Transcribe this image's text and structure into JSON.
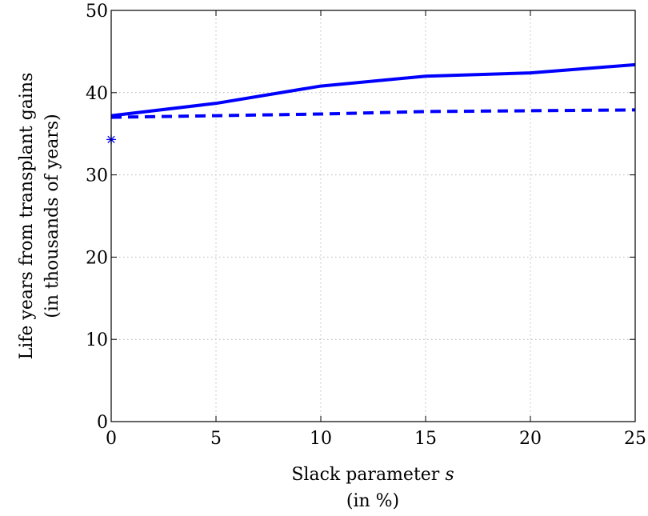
{
  "chart_data": {
    "type": "line",
    "xlabel_line1": "Slack parameter",
    "xlabel_symbol": "s",
    "xlabel_line2": "(in %)",
    "ylabel_line1": "Life years from transplant gains",
    "ylabel_line2": "(in thousands of years)",
    "xlim": [
      0,
      25
    ],
    "ylim": [
      0,
      50
    ],
    "xticks": [
      0,
      5,
      10,
      15,
      20,
      25
    ],
    "yticks": [
      0,
      10,
      20,
      30,
      40,
      50
    ],
    "grid": true,
    "series": [
      {
        "style": "solid",
        "color": "#0000ff",
        "x": [
          0,
          5,
          10,
          15,
          20,
          25
        ],
        "y": [
          37.2,
          38.7,
          40.8,
          42.0,
          42.4,
          43.4
        ]
      },
      {
        "style": "dashed",
        "color": "#0000ff",
        "x": [
          0,
          5,
          10,
          15,
          20,
          25
        ],
        "y": [
          37.0,
          37.2,
          37.4,
          37.7,
          37.8,
          37.9
        ]
      },
      {
        "style": "marker",
        "marker": "asterisk",
        "color": "#0000ff",
        "x": [
          0
        ],
        "y": [
          34.3
        ]
      }
    ]
  }
}
